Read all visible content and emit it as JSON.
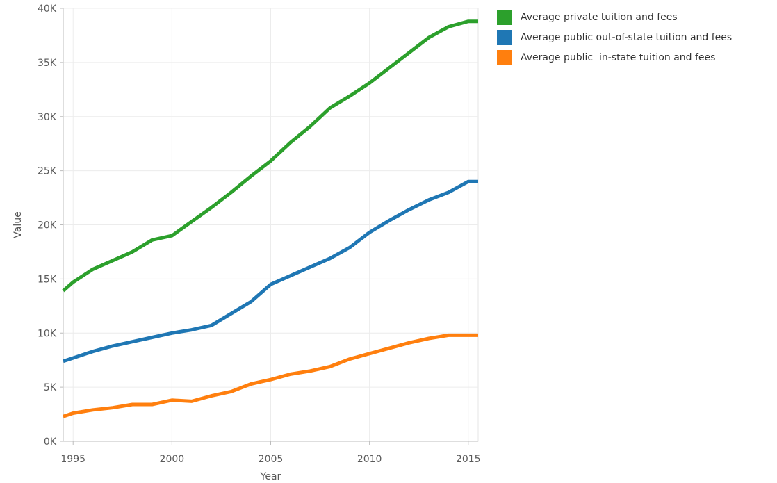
{
  "chart_data": {
    "type": "line",
    "xlabel": "Year",
    "ylabel": "Value",
    "xlim": [
      1994.5,
      2015.5
    ],
    "ylim": [
      0,
      40000
    ],
    "x_ticks": [
      1995,
      2000,
      2005,
      2010,
      2015
    ],
    "y_ticks": [
      {
        "value": 0,
        "label": "0K"
      },
      {
        "value": 5000,
        "label": "5K"
      },
      {
        "value": 10000,
        "label": "10K"
      },
      {
        "value": 15000,
        "label": "15K"
      },
      {
        "value": 20000,
        "label": "20K"
      },
      {
        "value": 25000,
        "label": "25K"
      },
      {
        "value": 30000,
        "label": "30K"
      },
      {
        "value": 35000,
        "label": "35K"
      },
      {
        "value": 40000,
        "label": "40K"
      }
    ],
    "grid": true,
    "legend_position": "top-right",
    "x": [
      1994.5,
      1995,
      1996,
      1997,
      1998,
      1999,
      2000,
      2001,
      2002,
      2003,
      2004,
      2005,
      2006,
      2007,
      2008,
      2009,
      2010,
      2011,
      2012,
      2013,
      2014,
      2015,
      2015.5
    ],
    "series": [
      {
        "name": "Average private tuition and fees",
        "color": "#2ca02c",
        "values": [
          13900,
          14700,
          15900,
          16700,
          17500,
          18600,
          19000,
          20300,
          21600,
          23000,
          24500,
          25900,
          27600,
          29100,
          30800,
          31900,
          33100,
          34500,
          35900,
          37300,
          38300,
          38800,
          38800
        ]
      },
      {
        "name": "Average public out-of-state tuition and fees",
        "color": "#1f77b4",
        "values": [
          7400,
          7700,
          8300,
          8800,
          9200,
          9600,
          10000,
          10300,
          10700,
          11800,
          12900,
          14500,
          15300,
          16100,
          16900,
          17900,
          19300,
          20400,
          21400,
          22300,
          23000,
          24000,
          24000
        ]
      },
      {
        "name": "Average public  in-state tuition and fees",
        "color": "#ff7f0e",
        "values": [
          2300,
          2600,
          2900,
          3100,
          3400,
          3400,
          3800,
          3700,
          4200,
          4600,
          5300,
          5700,
          6200,
          6500,
          6900,
          7600,
          8100,
          8600,
          9100,
          9500,
          9800,
          9800,
          9800
        ]
      }
    ]
  }
}
